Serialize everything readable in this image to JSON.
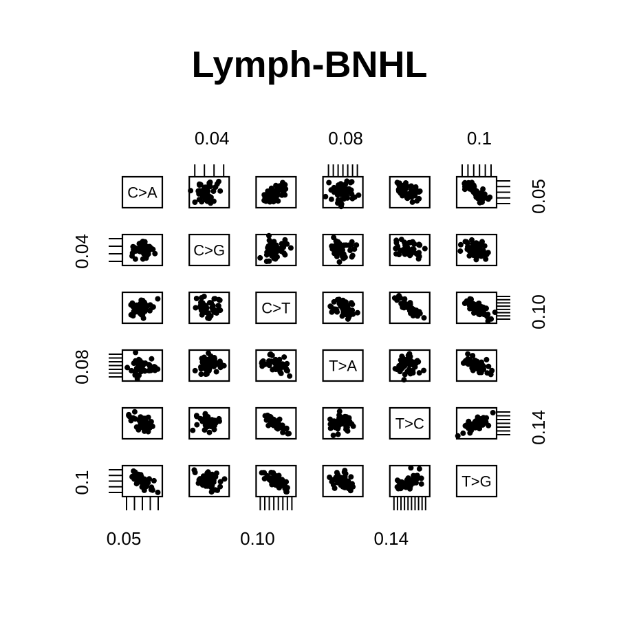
{
  "chart_data": {
    "type": "scatter",
    "title": "Lymph-BNHL",
    "variables": [
      "C>A",
      "C>G",
      "C>T",
      "T>A",
      "T>C",
      "T>G"
    ],
    "axis_labels": {
      "top": [
        {
          "col": 1,
          "label": "0.04"
        },
        {
          "col": 3,
          "label": "0.08"
        },
        {
          "col": 5,
          "label": "0.1"
        }
      ],
      "bottom": [
        {
          "col": 0,
          "label": "0.05"
        },
        {
          "col": 2,
          "label": "0.10"
        },
        {
          "col": 4,
          "label": "0.14"
        }
      ],
      "left": [
        {
          "row": 1,
          "label": "0.04"
        },
        {
          "row": 3,
          "label": "0.08"
        },
        {
          "row": 5,
          "label": "0.1"
        }
      ],
      "right": [
        {
          "row": 0,
          "label": "0.05"
        },
        {
          "row": 2,
          "label": "0.10"
        },
        {
          "row": 4,
          "label": "0.14"
        }
      ]
    },
    "grid": false,
    "legend": "none"
  }
}
